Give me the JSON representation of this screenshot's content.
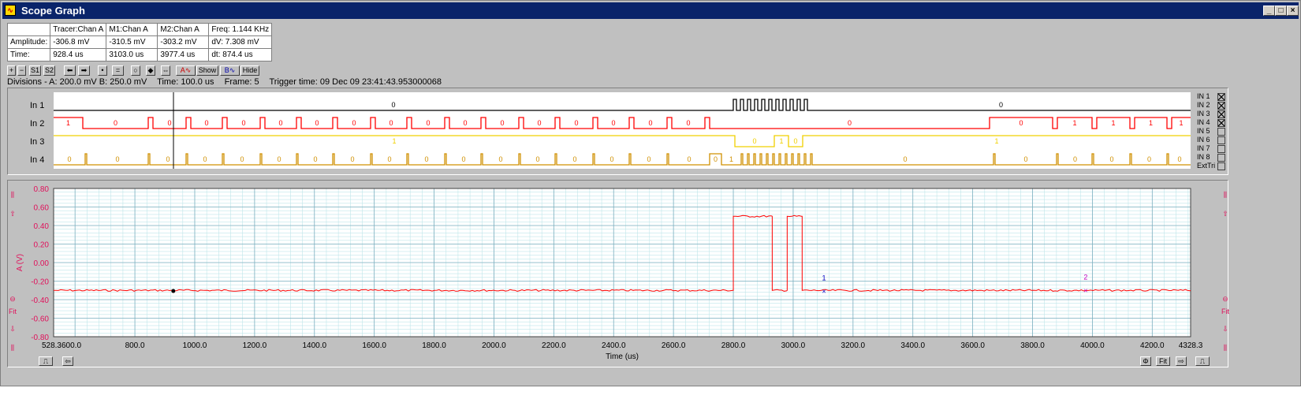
{
  "window": {
    "title": "Scope Graph"
  },
  "info_table": {
    "headers": [
      "",
      "Tracer:Chan A",
      "M1:Chan A",
      "M2:Chan A",
      "Freq: 1.144 KHz"
    ],
    "rows": [
      [
        "Amplitude:",
        "-306.8 mV",
        "-310.5 mV",
        "-303.2 mV",
        "dV: 7.308 mV"
      ],
      [
        "Time:",
        "928.4 us",
        "3103.0 us",
        "3977.4 us",
        "dt: 874.4 us"
      ]
    ]
  },
  "toolbar": {
    "s1": "S1",
    "s2": "S2",
    "a_label": "A",
    "b_label": "B",
    "show": "Show",
    "hide": "Hide"
  },
  "status": {
    "divisions": "Divisions -  A: 200.0 mV   B: 250.0 mV",
    "time": "Time: 100.0 us",
    "frame": "Frame: 5",
    "trigger": "Trigger time: 09 Dec 09 23:41:43.953000068"
  },
  "channels": {
    "in1": {
      "label": "In 1",
      "color": "#000000"
    },
    "in2": {
      "label": "In 2",
      "color": "#ff0000"
    },
    "in3": {
      "label": "In 3",
      "color": "#f0d000"
    },
    "in4": {
      "label": "In 4",
      "color": "#d09000"
    }
  },
  "input_list": [
    "IN 1",
    "IN 2",
    "IN 3",
    "IN 4",
    "IN 5",
    "IN 6",
    "IN 7",
    "IN 8",
    "ExtTri"
  ],
  "input_checked": [
    true,
    true,
    true,
    true,
    false,
    false,
    false,
    false,
    false
  ],
  "digital_values": {
    "in1": [
      "0",
      "0"
    ],
    "in2": [
      "1",
      "0",
      "0",
      "0",
      "0",
      "0",
      "0",
      "0",
      "0",
      "0",
      "0",
      "0",
      "0",
      "0",
      "0",
      "0",
      "0",
      "0",
      "0",
      "1",
      "1",
      "1",
      "1",
      "1"
    ],
    "in3": [
      "1",
      "0",
      "1",
      "0",
      "1"
    ],
    "in4": [
      "0",
      "0",
      "0",
      "0",
      "0",
      "0",
      "0",
      "0",
      "0",
      "0",
      "0",
      "0",
      "0",
      "0",
      "0",
      "0",
      "0",
      "0",
      "1",
      "0",
      "0",
      "0",
      "0",
      "0",
      "0",
      "0",
      "0"
    ]
  },
  "side_icons": {
    "fit": "Fit"
  },
  "chart_data": {
    "type": "line",
    "title": "",
    "xlabel": "Time (us)",
    "ylabel": "A (V)",
    "xlim": [
      528.36,
      4328.3
    ],
    "ylim": [
      -0.8,
      0.8
    ],
    "x_ticks": [
      "528.3600.0",
      "800.0",
      "1000.0",
      "1200.0",
      "1400.0",
      "1600.0",
      "1800.0",
      "2000.0",
      "2200.0",
      "2400.0",
      "2600.0",
      "2800.0",
      "3000.0",
      "3200.0",
      "3400.0",
      "3600.0",
      "3800.0",
      "4000.0",
      "4200.0",
      "4328.3"
    ],
    "y_ticks": [
      "0.80",
      "0.60",
      "0.40",
      "0.20",
      "0.00",
      "-0.20",
      "-0.40",
      "-0.60",
      "-0.80"
    ],
    "grid": true,
    "series": [
      {
        "color": "#ff0000",
        "x": [
          528.36,
          2800,
          2800,
          2930,
          2930,
          2980,
          2980,
          3030,
          3030,
          4328.3
        ],
        "y": [
          -0.3,
          -0.3,
          0.5,
          0.5,
          -0.3,
          -0.3,
          0.5,
          0.5,
          -0.3,
          -0.3
        ]
      }
    ],
    "tracer": {
      "x": 928.4,
      "y": -0.3068
    },
    "markers": [
      {
        "label": "1",
        "x": 3103.0,
        "y": -0.3105,
        "color": "#0000c0"
      },
      {
        "label": "2",
        "x": 3977.4,
        "y": -0.3032,
        "color": "#c000c0"
      }
    ]
  }
}
